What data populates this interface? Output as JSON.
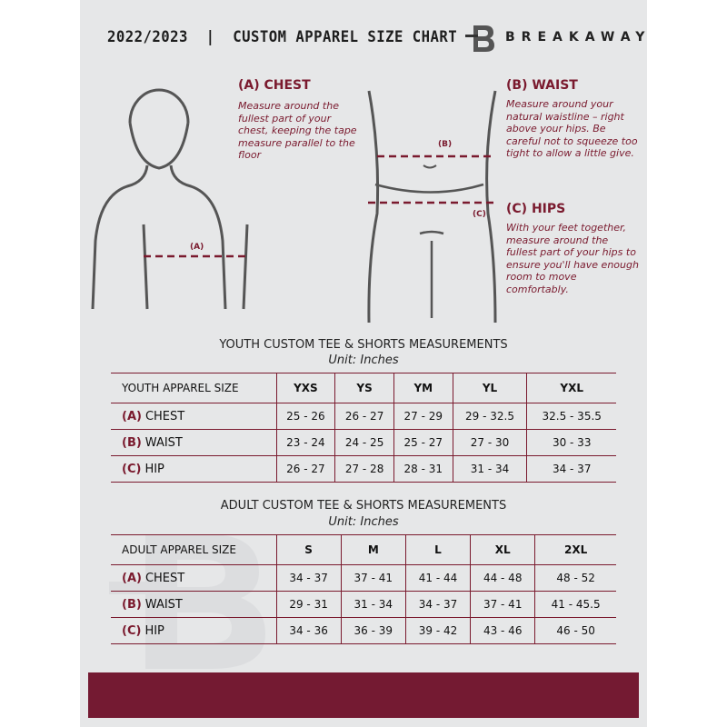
{
  "header": {
    "title": "2022/2023  |  CUSTOM APPAREL SIZE CHART",
    "brand": "BREAKAWAY",
    "logo_letter": "B"
  },
  "measures": {
    "chest": {
      "heading": "(A) CHEST",
      "label": "(A)",
      "text": "Measure around the fullest part of your chest, keeping the tape measure parallel to the floor"
    },
    "waist": {
      "heading": "(B) WAIST",
      "label": "(B)",
      "text": "Measure around your natural waistline – right above your hips. Be careful not to squeeze too tight to allow a little give."
    },
    "hips": {
      "heading": "(C) HIPS",
      "label": "(C)",
      "text": "With your feet together, measure around the fullest part of your hips to ensure you'll have enough room to move comfortably."
    }
  },
  "youth": {
    "title": "YOUTH CUSTOM TEE & SHORTS MEASUREMENTS",
    "unit": "Unit: Inches",
    "header": [
      "YOUTH APPAREL SIZE",
      "YXS",
      "YS",
      "YM",
      "YL",
      "YXL"
    ],
    "rows": [
      {
        "letter": "(A)",
        "name": "CHEST",
        "values": [
          "25 - 26",
          "26 - 27",
          "27 - 29",
          "29 - 32.5",
          "32.5 - 35.5"
        ]
      },
      {
        "letter": "(B)",
        "name": "WAIST",
        "values": [
          "23 - 24",
          "24 - 25",
          "25 - 27",
          "27 - 30",
          "30 - 33"
        ]
      },
      {
        "letter": "(C)",
        "name": "HIP",
        "values": [
          "26 - 27",
          "27 - 28",
          "28 - 31",
          "31 - 34",
          "34 - 37"
        ]
      }
    ]
  },
  "adult": {
    "title": "ADULT CUSTOM TEE & SHORTS MEASUREMENTS",
    "unit": "Unit: Inches",
    "header": [
      "ADULT APPAREL SIZE",
      "S",
      "M",
      "L",
      "XL",
      "2XL"
    ],
    "rows": [
      {
        "letter": "(A)",
        "name": "CHEST",
        "values": [
          "34 - 37",
          "37 - 41",
          "41 - 44",
          "44 - 48",
          "48 - 52"
        ]
      },
      {
        "letter": "(B)",
        "name": "WAIST",
        "values": [
          "29 - 31",
          "31 - 34",
          "34 - 37",
          "37 - 41",
          "41 - 45.5"
        ]
      },
      {
        "letter": "(C)",
        "name": "HIP",
        "values": [
          "34 - 36",
          "36 - 39",
          "39 - 42",
          "43 - 46",
          "46 - 50"
        ]
      }
    ]
  },
  "colors": {
    "accent": "#7a1a2e",
    "footer": "#741a32",
    "background": "#e6e7e8"
  }
}
